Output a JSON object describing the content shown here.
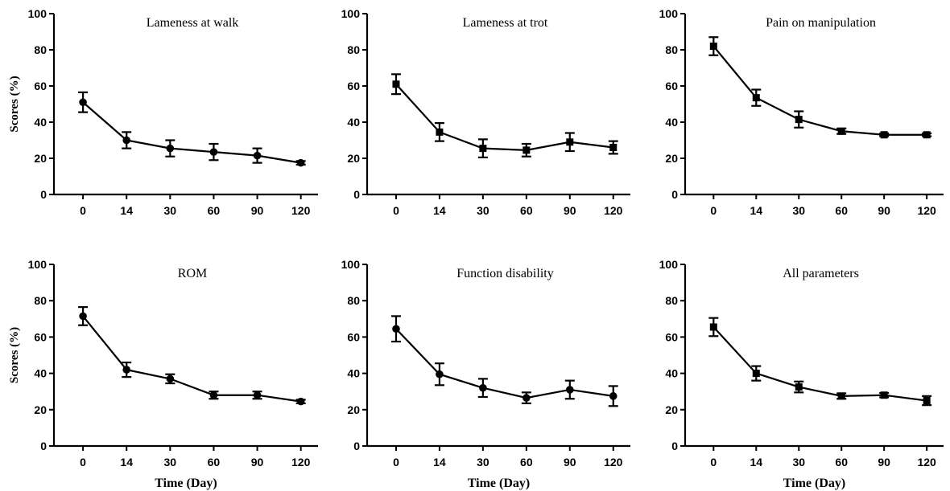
{
  "chart_data": [
    {
      "type": "line",
      "title": "Lameness at walk",
      "ylabel": "Scores (%)",
      "xlabel": "",
      "categories": [
        "0",
        "14",
        "30",
        "60",
        "90",
        "120"
      ],
      "values": [
        51,
        30,
        25.5,
        23.5,
        21.5,
        17.5
      ],
      "errors": [
        5.5,
        4.5,
        4.5,
        4.5,
        4,
        1
      ],
      "marker": "circle",
      "yticks": [
        0,
        20,
        40,
        60,
        80,
        100
      ],
      "ylim": [
        0,
        100
      ]
    },
    {
      "type": "line",
      "title": "Lameness at trot",
      "ylabel": "",
      "xlabel": "",
      "categories": [
        "0",
        "14",
        "30",
        "60",
        "90",
        "120"
      ],
      "values": [
        61,
        34.5,
        25.5,
        24.5,
        29,
        26
      ],
      "errors": [
        5.5,
        5,
        5,
        3.5,
        5,
        3.5
      ],
      "marker": "square",
      "yticks": [
        0,
        20,
        40,
        60,
        80,
        100
      ],
      "ylim": [
        0,
        100
      ]
    },
    {
      "type": "line",
      "title": "Pain on manipulation",
      "ylabel": "",
      "xlabel": "",
      "categories": [
        "0",
        "14",
        "30",
        "60",
        "90",
        "120"
      ],
      "values": [
        82,
        53.5,
        41.5,
        35,
        33,
        33
      ],
      "errors": [
        5,
        4.5,
        4.5,
        1.5,
        0.8,
        0.8
      ],
      "marker": "square",
      "yticks": [
        0,
        20,
        40,
        60,
        80,
        100
      ],
      "ylim": [
        0,
        100
      ]
    },
    {
      "type": "line",
      "title": "ROM",
      "ylabel": "Scores (%)",
      "xlabel": "Time (Day)",
      "categories": [
        "0",
        "14",
        "30",
        "60",
        "90",
        "120"
      ],
      "values": [
        71.5,
        42,
        37,
        28,
        28,
        24.5
      ],
      "errors": [
        5,
        4,
        2.5,
        2,
        2,
        1
      ],
      "marker": "circle",
      "yticks": [
        0,
        20,
        40,
        60,
        80,
        100
      ],
      "ylim": [
        0,
        100
      ]
    },
    {
      "type": "line",
      "title": "Function disability",
      "ylabel": "",
      "xlabel": "Time (Day)",
      "categories": [
        "0",
        "14",
        "30",
        "60",
        "90",
        "120"
      ],
      "values": [
        64.5,
        39.5,
        32,
        26.5,
        31,
        27.5
      ],
      "errors": [
        7,
        6,
        5,
        3,
        5,
        5.5
      ],
      "marker": "circle",
      "yticks": [
        0,
        20,
        40,
        60,
        80,
        100
      ],
      "ylim": [
        0,
        100
      ]
    },
    {
      "type": "line",
      "title": "All parameters",
      "ylabel": "",
      "xlabel": "Time (Day)",
      "categories": [
        "0",
        "14",
        "30",
        "60",
        "90",
        "120"
      ],
      "values": [
        65.5,
        40,
        32.5,
        27.5,
        28,
        25
      ],
      "errors": [
        5,
        4,
        3,
        1.5,
        1.2,
        2.5
      ],
      "marker": "square",
      "yticks": [
        0,
        20,
        40,
        60,
        80,
        100
      ],
      "ylim": [
        0,
        100
      ]
    }
  ],
  "colors": {
    "ink": "#000000",
    "background": "#ffffff"
  }
}
